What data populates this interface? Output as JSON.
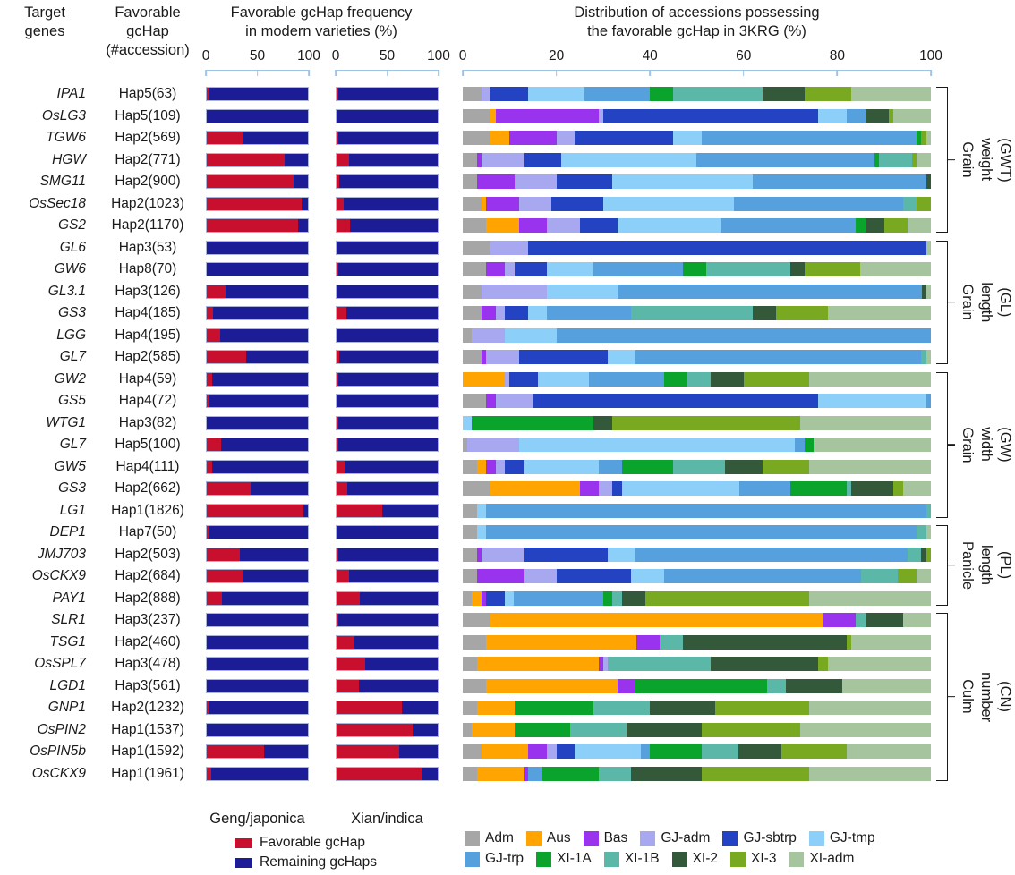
{
  "header": {
    "genes": "Target\ngenes",
    "hap": "Favorable\ngcHap\n(#accession)",
    "modern": "Favorable gcHap frequency\nin modern varieties (%)",
    "dist": "Distribution of accessions possessing\nthe favorable gcHap in 3KRG (%)"
  },
  "panels": {
    "geng": "Geng/japonica",
    "xian": "Xian/indica"
  },
  "fav_legend": {
    "favorable": "Favorable gcHap",
    "remaining": "Remaining gcHaps"
  },
  "colors": {
    "favorable": "#C8102E",
    "remaining": "#1C1C96",
    "axis_line": "#9DC3E6",
    "subpop": {
      "Adm": "#A6A6A6",
      "Aus": "#FFA400",
      "Bas": "#9933EE",
      "GJ-adm": "#A8A8F0",
      "GJ-sbtrp": "#2343C3",
      "GJ-tmp": "#8CCFF8",
      "GJ-trp": "#56A0DE",
      "XI-1A": "#0AA32B",
      "XI-1B": "#5BB8A8",
      "XI-2": "#34593A",
      "XI-3": "#79A821",
      "XI-adm": "#A6C49E"
    }
  },
  "chart_data": {
    "type": "bar",
    "subtype": "100%-stacked horizontal bars, three panels",
    "modern_axis_ticks": [
      0,
      50,
      100
    ],
    "dist_axis_ticks": [
      0,
      20,
      40,
      60,
      80,
      100
    ],
    "dist_categories": [
      "Adm",
      "Aus",
      "Bas",
      "GJ-adm",
      "GJ-sbtrp",
      "GJ-tmp",
      "GJ-trp",
      "XI-1A",
      "XI-1B",
      "XI-2",
      "XI-3",
      "XI-adm"
    ],
    "modern_series": [
      "Favorable gcHap",
      "Remaining gcHaps"
    ],
    "groups": [
      {
        "label": "Grain weight\n(GWT)",
        "rows": [
          {
            "gene": "IPA1",
            "hap": "Hap5(63)",
            "geng": 2,
            "xian": 2,
            "dist": [
              4,
              0,
              0,
              2,
              8,
              12,
              14,
              5,
              19,
              9,
              10,
              17
            ]
          },
          {
            "gene": "OsLG3",
            "hap": "Hap5(109)",
            "geng": 0,
            "xian": 0,
            "dist": [
              6,
              1,
              22,
              1,
              46,
              6,
              4,
              0,
              0,
              5,
              1,
              8
            ]
          },
          {
            "gene": "TGW6",
            "hap": "Hap2(569)",
            "geng": 35,
            "xian": 2,
            "dist": [
              6,
              4,
              10,
              4,
              21,
              6,
              46,
              1,
              0,
              0,
              1,
              1
            ]
          },
          {
            "gene": "HGW",
            "hap": "Hap2(771)",
            "geng": 77,
            "xian": 12,
            "dist": [
              3,
              0,
              1,
              9,
              8,
              29,
              38,
              1,
              7,
              0,
              1,
              3
            ]
          },
          {
            "gene": "SMG11",
            "hap": "Hap2(900)",
            "geng": 86,
            "xian": 3,
            "dist": [
              3,
              0,
              8,
              9,
              12,
              30,
              37,
              0,
              0,
              1,
              0,
              0
            ]
          },
          {
            "gene": "OsSec18",
            "hap": "Hap2(1023)",
            "geng": 94,
            "xian": 7,
            "dist": [
              4,
              1,
              7,
              7,
              11,
              28,
              36,
              0,
              3,
              0,
              3,
              0
            ]
          },
          {
            "gene": "GS2",
            "hap": "Hap2(1170)",
            "geng": 90,
            "xian": 13,
            "dist": [
              5,
              7,
              6,
              7,
              8,
              22,
              29,
              2,
              0,
              4,
              5,
              5
            ]
          }
        ]
      },
      {
        "label": "Grain length\n(GL)",
        "rows": [
          {
            "gene": "GL6",
            "hap": "Hap3(53)",
            "geng": 0,
            "xian": 0,
            "dist": [
              6,
              0,
              0,
              8,
              85,
              0,
              0,
              0,
              0,
              0,
              0,
              1
            ]
          },
          {
            "gene": "GW6",
            "hap": "Hap8(70)",
            "geng": 0,
            "xian": 2,
            "dist": [
              5,
              0,
              4,
              2,
              7,
              10,
              19,
              5,
              18,
              3,
              12,
              15
            ]
          },
          {
            "gene": "GL3.1",
            "hap": "Hap3(126)",
            "geng": 19,
            "xian": 0,
            "dist": [
              4,
              0,
              0,
              14,
              0,
              15,
              65,
              0,
              0,
              1,
              0,
              1
            ]
          },
          {
            "gene": "GS3",
            "hap": "Hap4(185)",
            "geng": 6,
            "xian": 10,
            "dist": [
              4,
              0,
              3,
              2,
              5,
              4,
              18,
              0,
              26,
              5,
              11,
              22
            ]
          },
          {
            "gene": "LGG",
            "hap": "Hap4(195)",
            "geng": 13,
            "xian": 0,
            "dist": [
              2,
              0,
              0,
              7,
              0,
              11,
              80,
              0,
              0,
              0,
              0,
              0
            ]
          },
          {
            "gene": "GL7",
            "hap": "Hap2(585)",
            "geng": 39,
            "xian": 3,
            "dist": [
              4,
              0,
              1,
              7,
              19,
              6,
              61,
              0,
              1,
              0,
              0,
              1
            ]
          }
        ]
      },
      {
        "label": "Grain width\n(GW)",
        "rows": [
          {
            "gene": "GW2",
            "hap": "Hap4(59)",
            "geng": 5,
            "xian": 2,
            "dist": [
              0,
              9,
              0,
              1,
              6,
              11,
              16,
              5,
              5,
              7,
              14,
              26
            ]
          },
          {
            "gene": "GS5",
            "hap": "Hap4(72)",
            "geng": 3,
            "xian": 0,
            "dist": [
              5,
              0,
              2,
              8,
              61,
              23,
              1,
              0,
              0,
              0,
              0,
              0
            ]
          },
          {
            "gene": "WTG1",
            "hap": "Hap3(82)",
            "geng": 0,
            "xian": 2,
            "dist": [
              0,
              0,
              0,
              0,
              0,
              2,
              0,
              26,
              0,
              4,
              40,
              28
            ]
          },
          {
            "gene": "GL7",
            "hap": "Hap5(100)",
            "geng": 14,
            "xian": 2,
            "dist": [
              1,
              0,
              0,
              11,
              0,
              59,
              2,
              2,
              0,
              0,
              0,
              25
            ]
          },
          {
            "gene": "GW5",
            "hap": "Hap4(111)",
            "geng": 5,
            "xian": 8,
            "dist": [
              3,
              2,
              2,
              2,
              4,
              16,
              5,
              11,
              11,
              8,
              10,
              26
            ]
          },
          {
            "gene": "GS3",
            "hap": "Hap2(662)",
            "geng": 43,
            "xian": 11,
            "dist": [
              6,
              19,
              4,
              3,
              2,
              25,
              11,
              12,
              1,
              9,
              2,
              6
            ]
          },
          {
            "gene": "LG1",
            "hap": "Hap1(1826)",
            "geng": 96,
            "xian": 45,
            "dist": [
              3,
              0,
              0,
              0,
              0,
              2,
              94,
              0,
              1,
              0,
              0,
              0
            ]
          }
        ]
      },
      {
        "label": "Panicle length\n(PL)",
        "rows": [
          {
            "gene": "DEP1",
            "hap": "Hap7(50)",
            "geng": 2,
            "xian": 0,
            "dist": [
              3,
              0,
              0,
              0,
              0,
              2,
              92,
              0,
              2,
              0,
              0,
              1
            ]
          },
          {
            "gene": "JMJ703",
            "hap": "Hap2(503)",
            "geng": 33,
            "xian": 2,
            "dist": [
              3,
              0,
              1,
              9,
              18,
              6,
              58,
              0,
              3,
              1,
              1,
              0
            ]
          },
          {
            "gene": "OsCKX9",
            "hap": "Hap2(684)",
            "geng": 36,
            "xian": 12,
            "dist": [
              3,
              0,
              10,
              7,
              16,
              7,
              42,
              0,
              8,
              0,
              4,
              3
            ]
          },
          {
            "gene": "PAY1",
            "hap": "Hap2(888)",
            "geng": 15,
            "xian": 23,
            "dist": [
              2,
              2,
              1,
              0,
              4,
              2,
              19,
              2,
              2,
              5,
              35,
              26
            ]
          }
        ]
      },
      {
        "label": "Culm number\n(CN)",
        "rows": [
          {
            "gene": "SLR1",
            "hap": "Hap3(237)",
            "geng": 0,
            "xian": 2,
            "dist": [
              6,
              71,
              7,
              0,
              0,
              0,
              0,
              0,
              2,
              8,
              0,
              6
            ]
          },
          {
            "gene": "TSG1",
            "hap": "Hap2(460)",
            "geng": 0,
            "xian": 18,
            "dist": [
              5,
              32,
              5,
              0,
              0,
              0,
              0,
              0,
              5,
              35,
              1,
              17
            ]
          },
          {
            "gene": "OsSPL7",
            "hap": "Hap3(478)",
            "geng": 0,
            "xian": 28,
            "dist": [
              3,
              26,
              1,
              1,
              0,
              0,
              0,
              0,
              22,
              23,
              2,
              22
            ]
          },
          {
            "gene": "LGD1",
            "hap": "Hap3(561)",
            "geng": 0,
            "xian": 22,
            "dist": [
              5,
              28,
              4,
              0,
              0,
              0,
              0,
              28,
              4,
              12,
              0,
              19
            ]
          },
          {
            "gene": "GNP1",
            "hap": "Hap2(1232)",
            "geng": 2,
            "xian": 65,
            "dist": [
              3,
              8,
              0,
              0,
              0,
              0,
              0,
              17,
              12,
              14,
              20,
              26
            ]
          },
          {
            "gene": "OsPIN2",
            "hap": "Hap1(1537)",
            "geng": 0,
            "xian": 75,
            "dist": [
              2,
              9,
              0,
              0,
              0,
              0,
              0,
              12,
              12,
              16,
              21,
              28
            ]
          },
          {
            "gene": "OsPIN5b",
            "hap": "Hap1(1592)",
            "geng": 57,
            "xian": 62,
            "dist": [
              4,
              10,
              4,
              2,
              4,
              14,
              2,
              11,
              8,
              9,
              14,
              18
            ]
          },
          {
            "gene": "OsCKX9",
            "hap": "Hap1(1961)",
            "geng": 4,
            "xian": 84,
            "dist": [
              3,
              10,
              1,
              0,
              0,
              0,
              3,
              12,
              7,
              15,
              23,
              26
            ]
          }
        ]
      }
    ]
  }
}
